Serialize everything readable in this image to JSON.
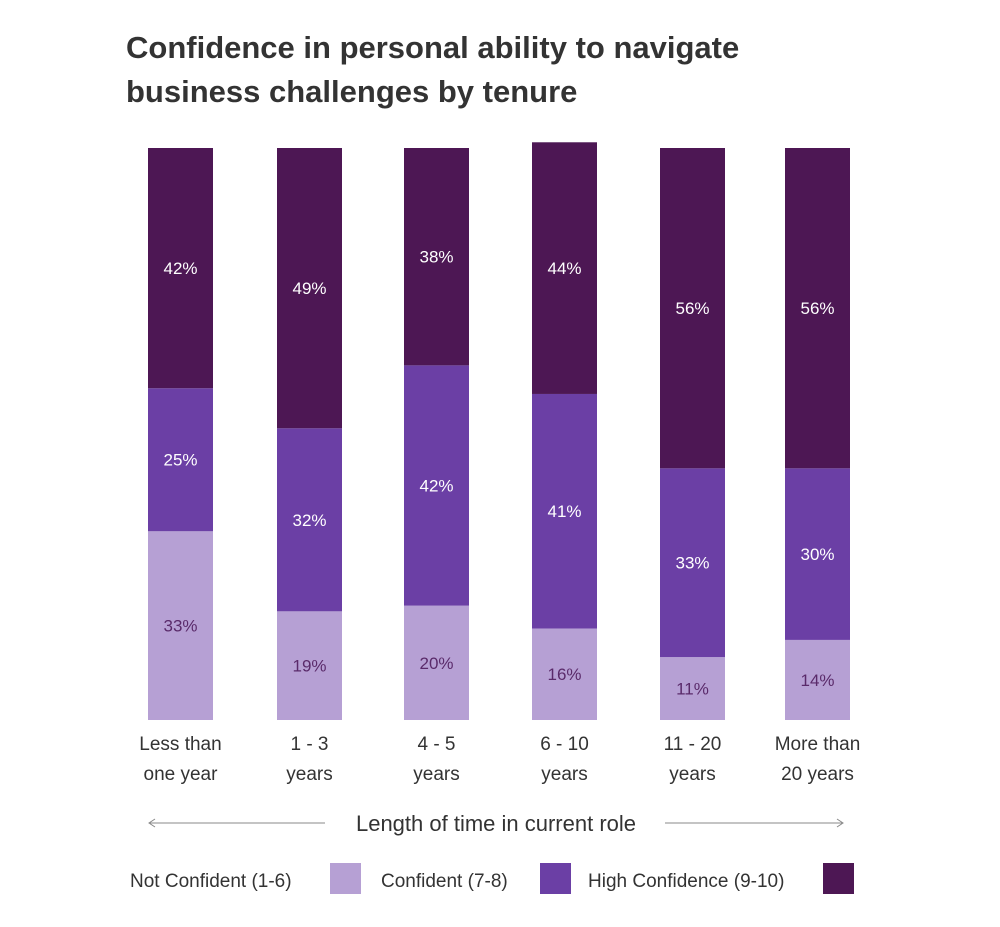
{
  "chart_data": {
    "type": "bar",
    "stacked": true,
    "title_lines": [
      "Confidence in personal ability to navigate",
      "business challenges by tenure"
    ],
    "xlabel": "Length of time in current role",
    "ylabel": "",
    "categories": [
      [
        "Less than",
        "one year"
      ],
      [
        "1 - 3",
        "years"
      ],
      [
        "4 - 5",
        "years"
      ],
      [
        "6 - 10",
        "years"
      ],
      [
        "11 - 20",
        "years"
      ],
      [
        "More than",
        "20 years"
      ]
    ],
    "series": [
      {
        "name": "Not Confident (1-6)",
        "color": "#b6a0d4",
        "label_color": "#5a2a6a",
        "values": [
          33,
          19,
          20,
          16,
          11,
          14
        ]
      },
      {
        "name": "Confident (7-8)",
        "color": "#6b3fa5",
        "label_color": "#ffffff",
        "values": [
          25,
          32,
          42,
          41,
          33,
          30
        ]
      },
      {
        "name": "High Confidence (9-10)",
        "color": "#4d1754",
        "label_color": "#ffffff",
        "values": [
          42,
          49,
          38,
          44,
          56,
          56
        ]
      }
    ],
    "value_suffix": "%",
    "ylim": [
      0,
      100
    ],
    "grid": false,
    "legend_placement": "bottom"
  }
}
